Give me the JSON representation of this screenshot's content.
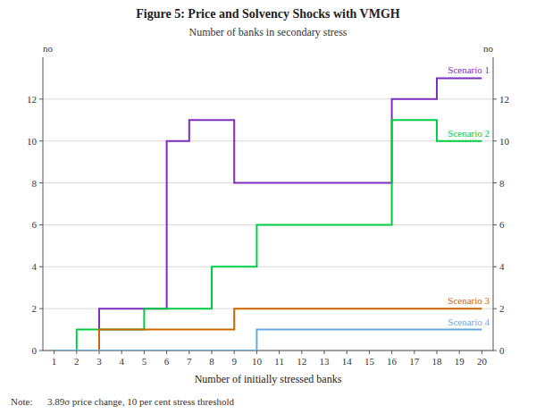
{
  "chart_data": {
    "type": "line",
    "title": "Figure 5: Price and Solvency Shocks with VMGH",
    "subtitle": "Number of banks in secondary stress",
    "xlabel": "Number of initially stressed banks",
    "ylabel": "no",
    "y2label": "no",
    "note": "Note:      3.89σ price change, 10 per cent stress threshold",
    "x": [
      1,
      2,
      3,
      4,
      5,
      6,
      7,
      8,
      9,
      10,
      11,
      12,
      13,
      14,
      15,
      16,
      17,
      18,
      19,
      20
    ],
    "series": [
      {
        "name": "Scenario 1",
        "color": "#7B2FBE",
        "values": [
          0,
          0,
          0,
          2,
          2,
          2,
          10,
          11,
          11,
          8,
          8,
          8,
          8,
          8,
          8,
          8,
          12,
          12,
          13,
          13
        ]
      },
      {
        "name": "Scenario 2",
        "color": "#00CC44",
        "values": [
          0,
          0,
          1,
          1,
          1,
          2,
          2,
          2,
          4,
          4,
          6,
          6,
          6,
          6,
          6,
          6,
          11,
          11,
          10,
          10
        ]
      },
      {
        "name": "Scenario 3",
        "color": "#CC6600",
        "values": [
          0,
          0,
          0,
          1,
          1,
          1,
          1,
          1,
          1,
          2,
          2,
          2,
          2,
          2,
          2,
          2,
          2,
          2,
          2,
          2
        ]
      },
      {
        "name": "Scenario 4",
        "color": "#66AADD",
        "values": [
          0,
          0,
          0,
          0,
          0,
          0,
          0,
          0,
          0,
          0,
          1,
          1,
          1,
          1,
          1,
          1,
          1,
          1,
          1,
          1
        ]
      }
    ],
    "xlim": [
      0.5,
      20.5
    ],
    "xticks": [
      1,
      2,
      3,
      4,
      5,
      6,
      7,
      8,
      9,
      10,
      11,
      12,
      13,
      14,
      15,
      16,
      17,
      18,
      19,
      20
    ],
    "ylim": [
      0,
      14
    ],
    "yticks": [
      0,
      2,
      4,
      6,
      8,
      10,
      12
    ],
    "y2lim": [
      0,
      14
    ],
    "y2ticks": [
      0,
      2,
      4,
      6,
      8,
      10,
      12
    ],
    "grid": true,
    "line_style": "step-before"
  }
}
